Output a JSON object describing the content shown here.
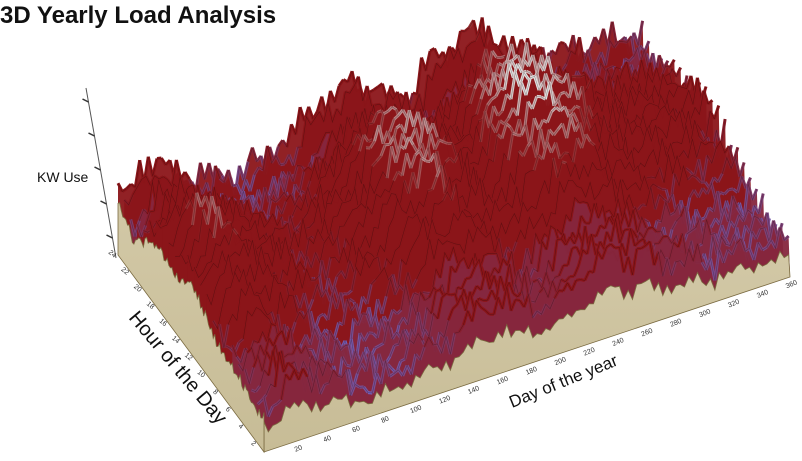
{
  "chart_data": {
    "type": "surface",
    "title": "3D Yearly Load Analysis",
    "xlabel": "Day of the year",
    "ylabel": "Hour of the Day",
    "zlabel": "KW Use",
    "x_ticks": [
      20,
      40,
      60,
      80,
      100,
      120,
      140,
      160,
      180,
      200,
      220,
      240,
      260,
      280,
      300,
      320,
      340,
      360
    ],
    "y_ticks": [
      2,
      4,
      6,
      8,
      10,
      12,
      14,
      16,
      18,
      20,
      22,
      24
    ],
    "xlim": [
      1,
      365
    ],
    "ylim": [
      1,
      24
    ],
    "colors": {
      "low": "#6f6fd8",
      "mid": "#8b1519",
      "high": "#e2e2e2",
      "wall": "#cdc3a0",
      "wall_edge": "#7a6a40"
    },
    "relative_load_profile": {
      "days": [
        1,
        20,
        40,
        60,
        80,
        100,
        120,
        140,
        160,
        180,
        200,
        220,
        240,
        260,
        280,
        300,
        320,
        340,
        365
      ],
      "level": [
        0.55,
        0.78,
        0.62,
        0.48,
        0.4,
        0.45,
        0.55,
        0.8,
        0.88,
        0.75,
        0.6,
        0.85,
        1.0,
        0.9,
        0.7,
        0.55,
        0.5,
        0.48,
        0.45
      ]
    }
  }
}
